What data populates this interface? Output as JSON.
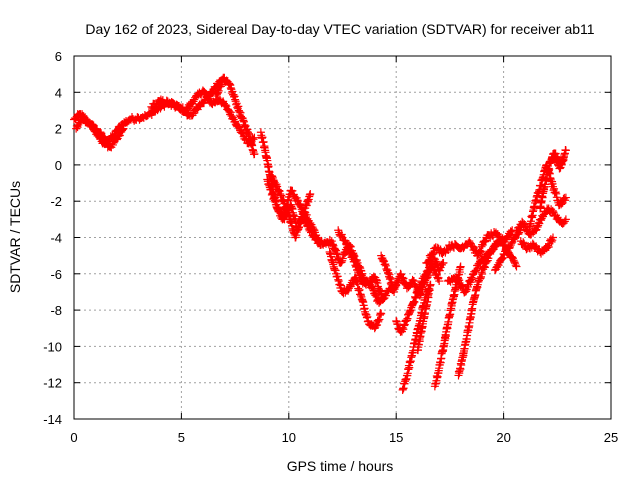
{
  "chart_data": {
    "type": "scatter",
    "title": "Day 162 of 2023, Sidereal Day-to-day VTEC variation (SDTVAR) for receiver ab11",
    "xlabel": "GPS time / hours",
    "ylabel": "SDTVAR / TECUs",
    "xlim": [
      0,
      25
    ],
    "ylim": [
      -14,
      6
    ],
    "xticks": [
      0,
      5,
      10,
      15,
      20,
      25
    ],
    "yticks": [
      -14,
      -12,
      -10,
      -8,
      -6,
      -4,
      -2,
      0,
      2,
      4,
      6
    ],
    "grid": true,
    "marker": "+",
    "series": [
      {
        "name": "SDTVAR",
        "color": "#ff0000",
        "tracks": [
          {
            "x": [
              0.0,
              0.3,
              0.6,
              1.0,
              1.3,
              1.6,
              1.9,
              2.2,
              2.6,
              3.0,
              3.4,
              3.8,
              4.3,
              4.8,
              5.2,
              5.6,
              6.0,
              6.4,
              6.8,
              7.2,
              7.5,
              7.8,
              8.1,
              8.4
            ],
            "y": [
              2.5,
              2.8,
              2.4,
              2.0,
              1.6,
              1.3,
              1.7,
              2.2,
              2.5,
              2.6,
              2.7,
              3.0,
              3.4,
              3.2,
              3.0,
              3.6,
              4.1,
              3.4,
              3.6,
              3.0,
              2.4,
              1.8,
              1.2,
              1.5
            ]
          },
          {
            "x": [
              0.1,
              0.4,
              0.8,
              1.1,
              1.4,
              1.7,
              2.0,
              2.3
            ],
            "y": [
              2.0,
              2.6,
              2.2,
              1.6,
              1.2,
              1.0,
              1.4,
              2.0
            ]
          },
          {
            "x": [
              3.6,
              4.0,
              4.5,
              5.0,
              5.4,
              5.8,
              6.3,
              6.8,
              7.0
            ],
            "y": [
              3.2,
              3.5,
              3.4,
              3.1,
              2.7,
              3.2,
              3.8,
              4.6,
              4.8
            ]
          },
          {
            "x": [
              6.6,
              6.9,
              7.2,
              7.5,
              7.8,
              8.1,
              8.4
            ],
            "y": [
              3.8,
              4.6,
              4.5,
              3.6,
              2.6,
              1.8,
              0.6
            ]
          },
          {
            "x": [
              8.7,
              8.9,
              9.1,
              9.3,
              9.5,
              9.8,
              10.1,
              10.4,
              10.7,
              11.0,
              11.3,
              11.6,
              12.0,
              12.4,
              12.8,
              13.2,
              13.6,
              14.0,
              14.4
            ],
            "y": [
              1.8,
              0.8,
              -0.4,
              -1.6,
              -2.4,
              -3.0,
              -2.2,
              -3.6,
              -2.6,
              -3.2,
              -4.0,
              -4.4,
              -4.2,
              -5.4,
              -4.4,
              -5.4,
              -6.6,
              -6.2,
              -7.4
            ]
          },
          {
            "x": [
              9.2,
              9.6,
              10.0,
              10.3,
              10.6,
              11.0
            ],
            "y": [
              -0.6,
              -1.6,
              -2.8,
              -4.0,
              -3.0,
              -1.6
            ]
          },
          {
            "x": [
              9.0,
              9.4,
              9.7,
              10.1,
              10.5,
              10.9,
              11.2,
              11.5
            ],
            "y": [
              -0.8,
              -2.2,
              -3.0,
              -1.4,
              -2.2,
              -3.4,
              -4.0,
              -4.4
            ]
          },
          {
            "x": [
              11.9,
              12.2,
              12.5,
              12.8,
              13.1,
              13.4,
              13.7,
              14.0,
              14.3
            ],
            "y": [
              -4.8,
              -6.0,
              -7.0,
              -6.8,
              -6.2,
              -7.4,
              -8.6,
              -9.0,
              -8.2
            ]
          },
          {
            "x": [
              12.3,
              12.7,
              13.0,
              13.4,
              13.8,
              14.2,
              14.6,
              15.0
            ],
            "y": [
              -3.6,
              -4.4,
              -5.2,
              -6.4,
              -6.6,
              -7.6,
              -7.0,
              -6.6
            ]
          },
          {
            "x": [
              14.3,
              14.6,
              14.9,
              15.2,
              15.5,
              15.8,
              16.1,
              16.4,
              16.7,
              17.0
            ],
            "y": [
              -5.0,
              -5.8,
              -7.0,
              -6.0,
              -6.8,
              -6.4,
              -7.2,
              -6.2,
              -5.6,
              -6.4
            ]
          },
          {
            "x": [
              15.0,
              15.2,
              15.4,
              15.6,
              15.8,
              16.0,
              16.2,
              16.4,
              16.6,
              16.8,
              17.0,
              17.2
            ],
            "y": [
              -8.6,
              -9.2,
              -8.8,
              -8.2,
              -7.6,
              -7.0,
              -6.4,
              -6.0,
              -5.4,
              -5.2,
              -5.8,
              -5.4
            ]
          },
          {
            "x": [
              15.3,
              15.5,
              15.7,
              15.9,
              16.1,
              16.3,
              16.5
            ],
            "y": [
              -12.4,
              -11.6,
              -10.6,
              -9.6,
              -8.6,
              -7.6,
              -6.8
            ]
          },
          {
            "x": [
              16.0,
              16.2,
              16.4,
              16.6
            ],
            "y": [
              -10.2,
              -9.0,
              -7.8,
              -6.6
            ]
          },
          {
            "x": [
              16.8,
              17.0,
              17.2,
              17.4,
              17.6,
              17.8,
              18.0
            ],
            "y": [
              -12.2,
              -11.2,
              -10.0,
              -8.8,
              -7.6,
              -6.6,
              -5.6
            ]
          },
          {
            "x": [
              17.9,
              18.1,
              18.3,
              18.5
            ],
            "y": [
              -11.6,
              -10.6,
              -9.4,
              -8.2
            ]
          },
          {
            "x": [
              16.4,
              16.8,
              17.2,
              17.6,
              18.0,
              18.4,
              18.8,
              19.2,
              19.6,
              20.0,
              20.4
            ],
            "y": [
              -5.4,
              -4.6,
              -4.8,
              -4.4,
              -4.6,
              -4.2,
              -5.0,
              -4.0,
              -3.8,
              -4.2,
              -3.6
            ]
          },
          {
            "x": [
              17.4,
              17.8,
              18.2,
              18.6,
              19.0,
              19.4,
              19.8
            ],
            "y": [
              -6.4,
              -6.2,
              -7.0,
              -6.0,
              -5.2,
              -4.8,
              -4.2
            ]
          },
          {
            "x": [
              18.5,
              18.8,
              19.1,
              19.4,
              19.7,
              20.0,
              20.3,
              20.6
            ],
            "y": [
              -8.0,
              -6.6,
              -5.6,
              -4.8,
              -4.2,
              -4.4,
              -5.0,
              -5.6
            ]
          },
          {
            "x": [
              19.6,
              19.9,
              20.2,
              20.5,
              20.8
            ],
            "y": [
              -5.8,
              -5.2,
              -4.6,
              -4.0,
              -3.6
            ]
          },
          {
            "x": [
              20.6,
              20.9,
              21.2,
              21.5,
              21.8,
              22.1,
              22.4,
              22.7,
              22.9
            ],
            "y": [
              -3.6,
              -3.2,
              -3.8,
              -3.6,
              -2.8,
              -2.4,
              -2.8,
              -3.2,
              -3.0
            ]
          },
          {
            "x": [
              20.8,
              21.1,
              21.4,
              21.7,
              22.0,
              22.3
            ],
            "y": [
              -4.2,
              -4.6,
              -4.4,
              -4.8,
              -4.6,
              -4.0
            ]
          },
          {
            "x": [
              21.2,
              21.5,
              21.8,
              22.0,
              22.3,
              22.6,
              22.9
            ],
            "y": [
              -3.4,
              -2.0,
              -0.8,
              0.0,
              -1.2,
              -2.2,
              -1.8
            ]
          },
          {
            "x": [
              21.7,
              21.9,
              22.1,
              22.3,
              22.5,
              22.7,
              22.9
            ],
            "y": [
              -2.4,
              -1.2,
              -0.2,
              0.6,
              0.4,
              0.0,
              0.8
            ]
          },
          {
            "x": [
              22.2,
              22.4,
              22.6,
              22.8
            ],
            "y": [
              0.2,
              0.6,
              -0.2,
              0.4
            ]
          }
        ]
      }
    ]
  }
}
